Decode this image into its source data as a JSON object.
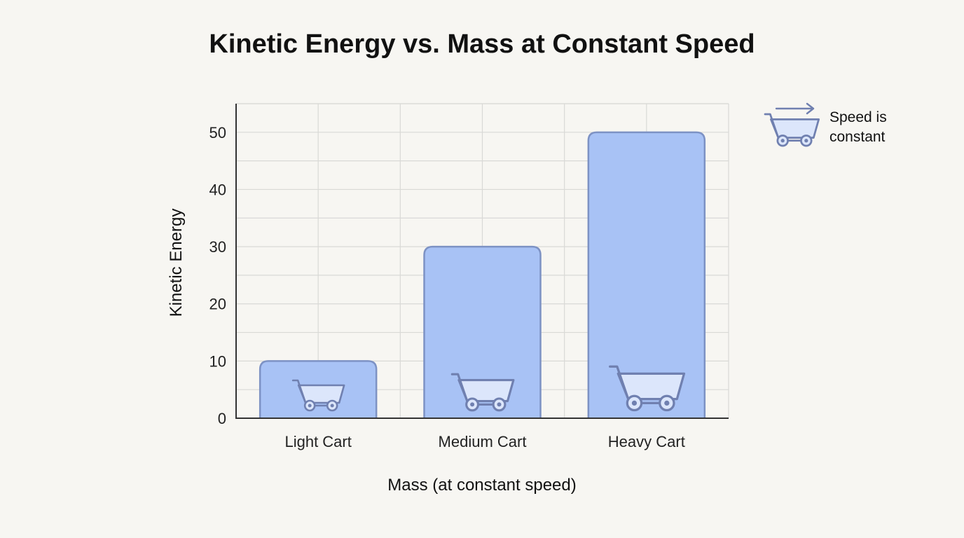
{
  "chart_data": {
    "type": "bar",
    "title": "Kinetic Energy vs. Mass at Constant Speed",
    "xlabel": "Mass (at constant speed)",
    "ylabel": "Kinetic Energy",
    "categories": [
      "Light Cart",
      "Medium Cart",
      "Heavy Cart"
    ],
    "values": [
      10,
      30,
      50
    ],
    "ylim": [
      0,
      55
    ],
    "yticks": [
      0,
      10,
      20,
      30,
      40,
      50
    ],
    "grid": true,
    "legend": {
      "position": "top-right",
      "text_line1": "Speed is",
      "text_line2": "constant",
      "icon": "cart-with-arrow-icon"
    },
    "bar_icon": "shopping-cart-icon",
    "colors": {
      "bar_fill": "#a8c2f5",
      "bar_stroke": "#7d92c4",
      "icon_stroke": "#7080b0",
      "icon_fill": "#dce6fb",
      "grid": "#d9d9d6",
      "axis": "#333333",
      "background": "#f7f6f2"
    }
  }
}
